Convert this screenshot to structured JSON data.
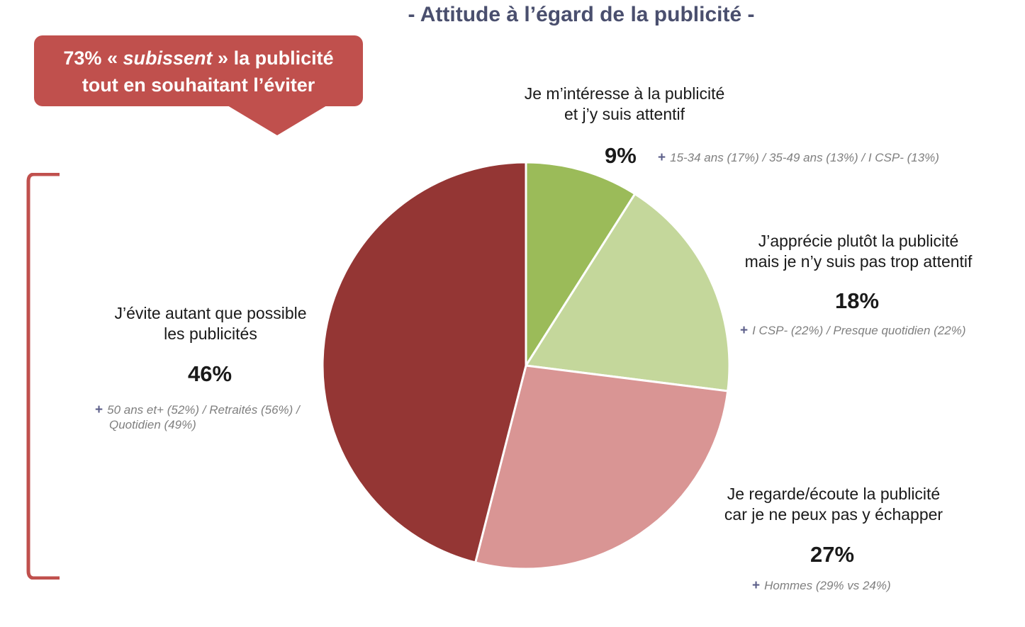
{
  "title": "- Attitude à l’égard de la publicité -",
  "callout": {
    "pct": "73%",
    "open_quote": "«",
    "italic_word": "subissent",
    "close_quote": "»",
    "rest_line1": "la publicité",
    "line2": "tout en souhaitant l’éviter"
  },
  "colors": {
    "callout": "#c0504d",
    "bracket": "#c0504d",
    "plus_sign": "#5c5f8a"
  },
  "chart_data": {
    "type": "pie",
    "title": "- Attitude à l’égard de la publicité -",
    "start": "12 o'clock, clockwise",
    "slices": [
      {
        "label_line1": "Je m’intéresse à la publicité",
        "label_line2": "et j’y suis attentif",
        "value": 9,
        "value_label": "9%",
        "note_sign": "+",
        "note": "15-34 ans (17%) / 35-49 ans (13%) / I CSP- (13%)",
        "note_line2": "",
        "color": "#9bbb59"
      },
      {
        "label_line1": "J’apprécie plutôt la publicité",
        "label_line2": "mais je n’y suis pas trop attentif",
        "value": 18,
        "value_label": "18%",
        "note_sign": "+",
        "note": "I CSP- (22%) / Presque quotidien (22%)",
        "note_line2": "",
        "color": "#c4d79b"
      },
      {
        "label_line1": "Je regarde/écoute la publicité",
        "label_line2": "car je ne peux pas y échapper",
        "value": 27,
        "value_label": "27%",
        "note_sign": "+",
        "note": "Hommes (29% vs 24%)",
        "note_line2": "",
        "color": "#d99594"
      },
      {
        "label_line1": "J’évite autant que possible",
        "label_line2": "les publicités",
        "value": 46,
        "value_label": "46%",
        "note_sign": "+",
        "note": "50 ans et+ (52%) / Retraités (56%) /",
        "note_line2": "Quotidien (49%)",
        "color": "#943634"
      }
    ]
  }
}
